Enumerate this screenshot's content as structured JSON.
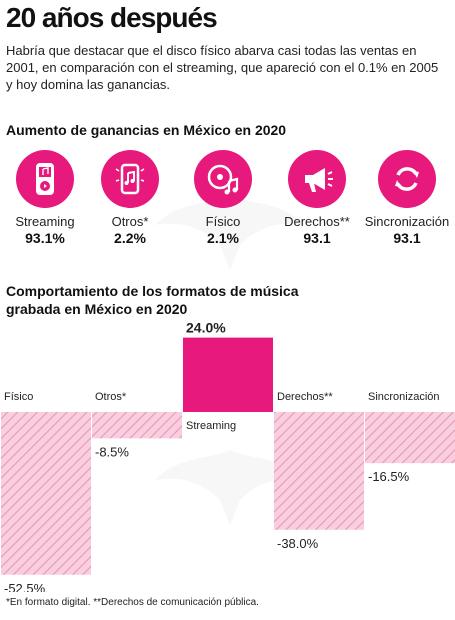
{
  "title": "20 años después",
  "intro": "Habría que destacar que el disco físico abarva casi todas las ventas en 2001, en comparación con el streaming, que apareció con el 0.1% en 2005 y hoy domina las ganancias.",
  "section1_title": "Aumento de ganancias en México en 2020",
  "icons": [
    {
      "label": "Streaming",
      "value": "93.1%",
      "icon": "music-player-icon"
    },
    {
      "label": "Otros*",
      "value": "2.2%",
      "icon": "phone-music-icon"
    },
    {
      "label": "Físico",
      "value": "2.1%",
      "icon": "vinyl-disc-icon"
    },
    {
      "label": "Derechos**",
      "value": "93.1",
      "icon": "megaphone-icon"
    },
    {
      "label": "Sincronización",
      "value": "93.1",
      "icon": "sync-icon"
    }
  ],
  "section2_title": "Comportamiento de los formatos de música grabada en México en 2020",
  "chart_data": {
    "type": "bar",
    "categories": [
      "Físico",
      "Otros*",
      "Streaming",
      "Derechos**",
      "Sincronización"
    ],
    "values": [
      -52.5,
      -8.5,
      24.0,
      -38.0,
      -16.5
    ],
    "value_labels": [
      "-52.5%",
      "-8.5%",
      "24.0%",
      "-38.0%",
      "-16.5%"
    ],
    "title": "",
    "xlabel": "",
    "ylabel": "",
    "ylim": [
      -52.5,
      24.0
    ],
    "grid": false,
    "colors": {
      "positive": "#e8197d",
      "negative_fill": "#f9cfe0",
      "negative_hatch": "#e896b8"
    }
  },
  "footnote": "*En formato digital. **Derechos de comunicación pública."
}
